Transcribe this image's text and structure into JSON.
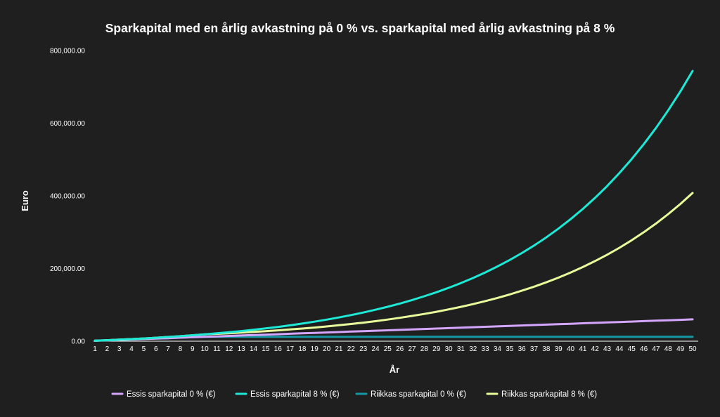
{
  "chart_data": {
    "type": "line",
    "title": "Sparkapital med en årlig avkastning på 0 % vs. sparkapital med årlig avkastning på 8 %",
    "xlabel": "År",
    "ylabel": "Euro",
    "x": [
      1,
      2,
      3,
      4,
      5,
      6,
      7,
      8,
      9,
      10,
      11,
      12,
      13,
      14,
      15,
      16,
      17,
      18,
      19,
      20,
      21,
      22,
      23,
      24,
      25,
      26,
      27,
      28,
      29,
      30,
      31,
      32,
      33,
      34,
      35,
      36,
      37,
      38,
      39,
      40,
      41,
      42,
      43,
      44,
      45,
      46,
      47,
      48,
      49,
      50
    ],
    "x_tick_labels": [
      "1",
      "2",
      "3",
      "4",
      "5",
      "6",
      "7",
      "8",
      "9",
      "10",
      "11",
      "12",
      "13",
      "14",
      "15",
      "16",
      "17",
      "18",
      "19",
      "20",
      "21",
      "22",
      "23",
      "24",
      "25",
      "26",
      "27",
      "28",
      "29",
      "30",
      "31",
      "32",
      "33",
      "34",
      "35",
      "36",
      "37",
      "38",
      "39",
      "40",
      "41",
      "42",
      "43",
      "44",
      "45",
      "46",
      "47",
      "48",
      "49",
      "50"
    ],
    "ylim": [
      0,
      800000
    ],
    "y_ticks": [
      0,
      200000,
      400000,
      600000,
      800000
    ],
    "y_tick_labels": [
      "0.00",
      "200,000.00",
      "400,000.00",
      "600,000.00",
      "800,000.00"
    ],
    "grid": false,
    "legend_position": "bottom",
    "series": [
      {
        "name": "Essis sparkapital 0 % (€)",
        "color": "#d4a6ff",
        "values": [
          1200,
          2400,
          3600,
          4800,
          6000,
          7200,
          8400,
          9600,
          10800,
          12000,
          13200,
          14400,
          15600,
          16800,
          18000,
          19200,
          20400,
          21600,
          22800,
          24000,
          25200,
          26400,
          27600,
          28800,
          30000,
          31200,
          32400,
          33600,
          34800,
          36000,
          37200,
          38400,
          39600,
          40800,
          42000,
          43200,
          44400,
          45600,
          46800,
          48000,
          49200,
          50400,
          51600,
          52800,
          54000,
          55200,
          56400,
          57600,
          58800,
          60000
        ]
      },
      {
        "name": "Essis sparkapital 8 % (€)",
        "color": "#1de9d6",
        "values": [
          1296,
          2696,
          4208,
          5841,
          7604,
          9509,
          11566,
          13788,
          16187,
          18778,
          21577,
          24599,
          27863,
          31388,
          35195,
          39306,
          43747,
          48543,
          53722,
          59316,
          65357,
          71882,
          78929,
          86539,
          94759,
          103636,
          113223,
          123577,
          134760,
          146838,
          159882,
          173970,
          189185,
          205618,
          223365,
          242532,
          263232,
          285588,
          309733,
          335810,
          363974,
          394390,
          427240,
          462718,
          501035,
          542418,
          587113,
          635383,
          687516,
          743820
        ]
      },
      {
        "name": "Riikkas sparkapital 0 % (€)",
        "color": "#1597a3",
        "values": [
          1200,
          2400,
          3600,
          4800,
          6000,
          7200,
          8400,
          9600,
          10800,
          12000,
          12000,
          12000,
          12000,
          12000,
          12000,
          12000,
          12000,
          12000,
          12000,
          12000,
          12000,
          12000,
          12000,
          12000,
          12000,
          12000,
          12000,
          12000,
          12000,
          12000,
          12000,
          12000,
          12000,
          12000,
          12000,
          12000,
          12000,
          12000,
          12000,
          12000,
          12000,
          12000,
          12000,
          12000,
          12000,
          12000,
          12000,
          12000,
          12000,
          12000
        ]
      },
      {
        "name": "Riikkas sparkapital 8 % (€)",
        "color": "#e8fc9c",
        "values": [
          1296,
          2696,
          4208,
          5841,
          7604,
          9509,
          11566,
          13788,
          16187,
          18778,
          20280,
          21902,
          23654,
          25546,
          27590,
          29797,
          32181,
          34755,
          37536,
          40538,
          43781,
          47284,
          51067,
          55152,
          59564,
          64329,
          69476,
          75034,
          81036,
          87519,
          94521,
          102083,
          110249,
          119069,
          128595,
          138883,
          149993,
          161993,
          174952,
          188948,
          204064,
          220389,
          238020,
          257062,
          277627,
          299837,
          323824,
          349730,
          377708,
          407925
        ]
      }
    ]
  }
}
